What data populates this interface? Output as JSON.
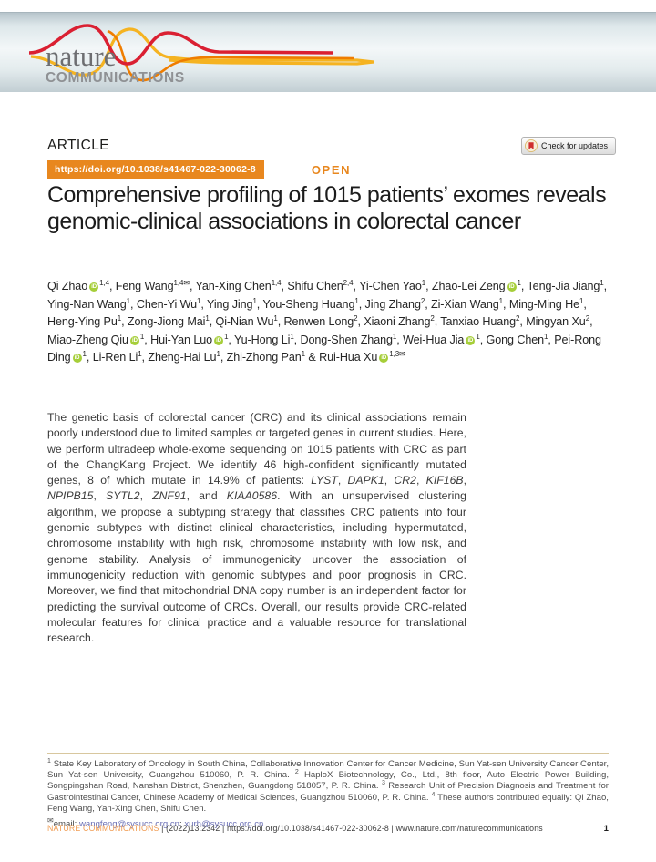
{
  "masthead": {
    "brand": "nature",
    "brand_sub": "COMMUNICATIONS"
  },
  "article": {
    "kicker": "ARTICLE",
    "doi": "https://doi.org/10.1038/s41467-022-30062-8",
    "open": "OPEN",
    "check_updates": "Check for updates",
    "title": "Comprehensive profiling of 1015 patients’ exomes reveals genomic-clinical associations in colorectal cancer"
  },
  "authors": {
    "list": [
      {
        "name": "Qi Zhao",
        "orcid": true,
        "sup": "1,4"
      },
      {
        "name": "Feng Wang",
        "sup": "1,4",
        "email": true
      },
      {
        "name": "Yan-Xing Chen",
        "sup": "1,4"
      },
      {
        "name": "Shifu Chen",
        "sup": "2,4"
      },
      {
        "name": "Yi-Chen Yao",
        "sup": "1"
      },
      {
        "name": "Zhao-Lei Zeng",
        "orcid": true,
        "sup": "1"
      },
      {
        "name": "Teng-Jia Jiang",
        "sup": "1"
      },
      {
        "name": "Ying-Nan Wang",
        "sup": "1"
      },
      {
        "name": "Chen-Yi Wu",
        "sup": "1"
      },
      {
        "name": "Ying Jing",
        "sup": "1"
      },
      {
        "name": "You-Sheng Huang",
        "sup": "1"
      },
      {
        "name": "Jing Zhang",
        "sup": "2"
      },
      {
        "name": "Zi-Xian Wang",
        "sup": "1"
      },
      {
        "name": "Ming-Ming He",
        "sup": "1"
      },
      {
        "name": "Heng-Ying Pu",
        "sup": "1"
      },
      {
        "name": "Zong-Jiong Mai",
        "sup": "1"
      },
      {
        "name": "Qi-Nian Wu",
        "sup": "1"
      },
      {
        "name": "Renwen Long",
        "sup": "2"
      },
      {
        "name": "Xiaoni Zhang",
        "sup": "2"
      },
      {
        "name": "Tanxiao Huang",
        "sup": "2"
      },
      {
        "name": "Mingyan Xu",
        "sup": "2"
      },
      {
        "name": "Miao-Zheng Qiu",
        "orcid": true,
        "sup": "1"
      },
      {
        "name": "Hui-Yan Luo",
        "orcid": true,
        "sup": "1"
      },
      {
        "name": "Yu-Hong Li",
        "sup": "1"
      },
      {
        "name": "Dong-Shen Zhang",
        "sup": "1"
      },
      {
        "name": "Wei-Hua Jia",
        "orcid": true,
        "sup": "1"
      },
      {
        "name": "Gong Chen",
        "sup": "1"
      },
      {
        "name": "Pei-Rong Ding",
        "orcid": true,
        "sup": "1"
      },
      {
        "name": "Li-Ren Li",
        "sup": "1"
      },
      {
        "name": "Zheng-Hai Lu",
        "sup": "1"
      },
      {
        "name": "Zhi-Zhong Pan",
        "sup": "1"
      },
      {
        "name": "Rui-Hua Xu",
        "orcid": true,
        "sup": "1,3",
        "email": true
      }
    ],
    "joiner": ", ",
    "last_joiner": " & "
  },
  "abstract": {
    "segments": [
      {
        "text": "The genetic basis of colorectal cancer (CRC) and its clinical associations remain poorly understood due to limited samples or targeted genes in current studies. Here, we perform ultradeep whole-exome sequencing on 1015 patients with CRC as part of the ChangKang Project. We identify 46 high-confident significantly mutated genes, 8 of which mutate in 14.9% of patients: ",
        "italic": false
      },
      {
        "text": "LYST",
        "italic": true
      },
      {
        "text": ", ",
        "italic": false
      },
      {
        "text": "DAPK1",
        "italic": true
      },
      {
        "text": ", ",
        "italic": false
      },
      {
        "text": "CR2",
        "italic": true
      },
      {
        "text": ", ",
        "italic": false
      },
      {
        "text": "KIF16B",
        "italic": true
      },
      {
        "text": ", ",
        "italic": false
      },
      {
        "text": "NPIPB15",
        "italic": true
      },
      {
        "text": ", ",
        "italic": false
      },
      {
        "text": "SYTL2",
        "italic": true
      },
      {
        "text": ", ",
        "italic": false
      },
      {
        "text": "ZNF91",
        "italic": true
      },
      {
        "text": ", and ",
        "italic": false
      },
      {
        "text": "KIAA0586",
        "italic": true
      },
      {
        "text": ". With an unsupervised clustering algorithm, we propose a subtyping strategy that classifies CRC patients into four genomic subtypes with distinct clinical characteristics, including hypermutated, chromosome instability with high risk, chromosome instability with low risk, and genome stability. Analysis of immunogenicity uncover the association of immunogenicity reduction with genomic subtypes and poor prognosis in CRC. Moreover, we find that mitochondrial DNA copy number is an independent factor for predicting the survival outcome of CRCs. Overall, our results provide CRC-related molecular features for clinical practice and a valuable resource for translational research.",
        "italic": false
      }
    ]
  },
  "footnotes": {
    "notes": [
      {
        "sup": "1",
        "text": "State Key Laboratory of Oncology in South China, Collaborative Innovation Center for Cancer Medicine, Sun Yat-sen University Cancer Center, Sun Yat-sen University, Guangzhou 510060, P. R. China."
      },
      {
        "sup": "2",
        "text": "HaploX Biotechnology, Co., Ltd., 8th floor, Auto Electric Power Building, Songpingshan Road, Nanshan District, Shenzhen, Guangdong 518057, P. R. China."
      },
      {
        "sup": "3",
        "text": "Research Unit of Precision Diagnosis and Treatment for Gastrointestinal Cancer, Chinese Academy of Medical Sciences, Guangzhou 510060, P. R. China."
      },
      {
        "sup": "4",
        "text": "These authors contributed equally: Qi Zhao, Feng Wang, Yan-Xing Chen, Shifu Chen."
      }
    ],
    "email_label": "email:",
    "emails": [
      "wangfeng@sysucc.org.cn",
      "xurh@sysucc.org.cn"
    ],
    "email_separator": "; "
  },
  "footer": {
    "journal": "NATURE COMMUNICATIONS",
    "meta": " | (2022)13:2342 | https://doi.org/10.1038/s41467-022-30062-8 | www.nature.com/naturecommunications",
    "page": "1"
  },
  "colors": {
    "accent_orange": "#e8871e",
    "orcid_green": "#a6ce39",
    "link_blue": "#6a6fb5",
    "rule_tan": "#d8c79e",
    "footer_orange": "#f09c53",
    "crossmark_red": "#cf2e2e",
    "ribbon_red": "#da2032",
    "ribbon_yellow": "#f5b321",
    "ribbon_orange": "#ef7d00"
  }
}
